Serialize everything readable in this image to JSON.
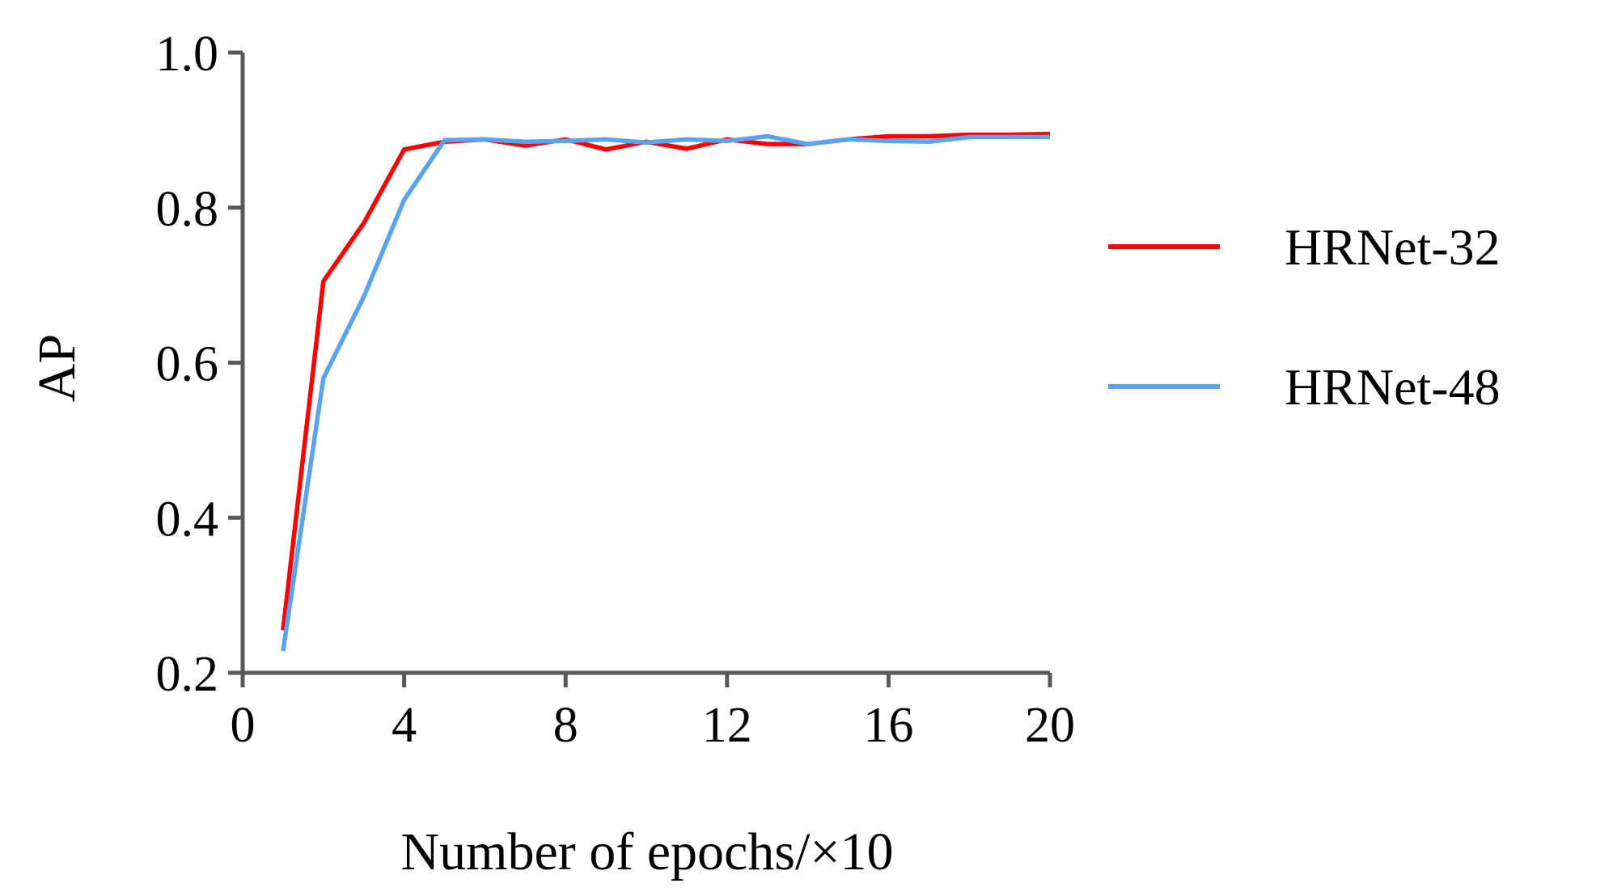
{
  "chart_data": {
    "type": "line",
    "xlabel": "Number of epochs/×10",
    "ylabel": "AP",
    "xlim": [
      0,
      20
    ],
    "ylim": [
      0.2,
      1.0
    ],
    "xticks": [
      "0",
      "4",
      "8",
      "12",
      "16",
      "20"
    ],
    "yticks": [
      "0.2",
      "0.4",
      "0.6",
      "0.8",
      "1.0"
    ],
    "grid": false,
    "legend_position": "right",
    "x": [
      1,
      2,
      3,
      4,
      5,
      6,
      7,
      8,
      9,
      10,
      11,
      12,
      13,
      14,
      15,
      16,
      17,
      18,
      19,
      20
    ],
    "series": [
      {
        "name": "HRNet-32",
        "color": "#ff0000",
        "values": [
          0.255,
          0.705,
          0.78,
          0.875,
          0.885,
          0.888,
          0.88,
          0.888,
          0.875,
          0.885,
          0.876,
          0.888,
          0.882,
          0.882,
          0.888,
          0.892,
          0.892,
          0.894,
          0.894,
          0.895
        ]
      },
      {
        "name": "HRNet-48",
        "color": "#5aa3f0",
        "values": [
          0.228,
          0.58,
          0.685,
          0.81,
          0.887,
          0.888,
          0.885,
          0.886,
          0.888,
          0.884,
          0.888,
          0.886,
          0.892,
          0.882,
          0.888,
          0.886,
          0.885,
          0.891,
          0.891,
          0.891
        ]
      }
    ]
  }
}
